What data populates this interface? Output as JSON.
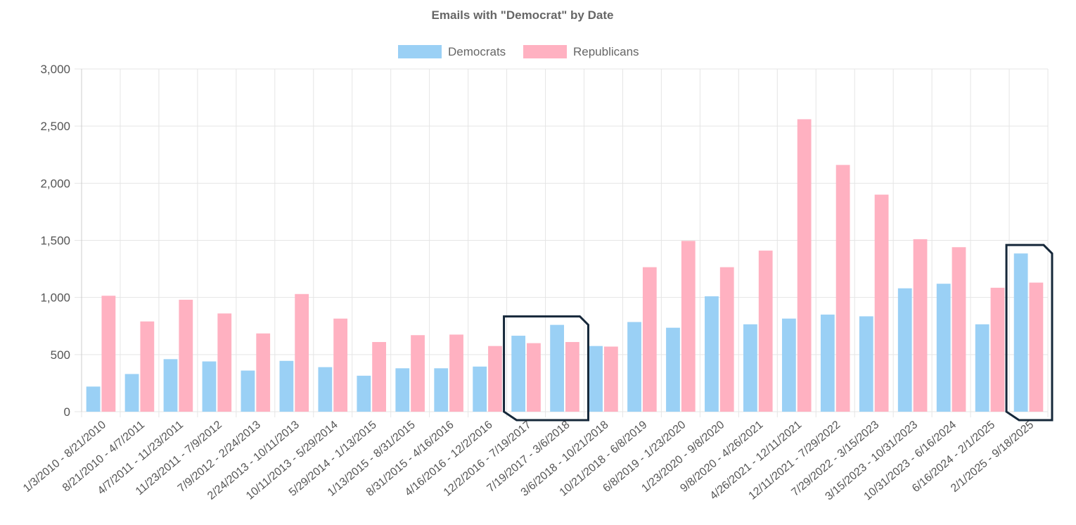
{
  "chart_data": {
    "type": "bar",
    "title": "Emails with \"Democrat\" by Date",
    "legend_position": "top",
    "grid": true,
    "ylim": [
      0,
      3000
    ],
    "yticks": [
      0,
      500,
      1000,
      1500,
      2000,
      2500,
      3000
    ],
    "ytick_labels": [
      "0",
      "500",
      "1,000",
      "1,500",
      "2,000",
      "2,500",
      "3,000"
    ],
    "categories": [
      "1/3/2010 - 8/21/2010",
      "8/21/2010 - 4/7/2011",
      "4/7/2011 - 11/23/2011",
      "11/23/2011 - 7/9/2012",
      "7/9/2012 - 2/24/2013",
      "2/24/2013 - 10/11/2013",
      "10/11/2013 - 5/29/2014",
      "5/29/2014 - 1/13/2015",
      "1/13/2015 - 8/31/2015",
      "8/31/2015 - 4/16/2016",
      "4/16/2016 - 12/2/2016",
      "12/2/2016 - 7/19/2017",
      "7/19/2017 - 3/6/2018",
      "3/6/2018 - 10/21/2018",
      "10/21/2018 - 6/8/2019",
      "6/8/2019 - 1/23/2020",
      "1/23/2020 - 9/8/2020",
      "9/8/2020 - 4/26/2021",
      "4/26/2021 - 12/11/2021",
      "12/11/2021 - 7/29/2022",
      "7/29/2022 - 3/15/2023",
      "3/15/2023 - 10/31/2023",
      "10/31/2023 - 6/16/2024",
      "6/16/2024 - 2/1/2025",
      "2/1/2025 - 9/18/2025"
    ],
    "series": [
      {
        "name": "Democrats",
        "color": "#9ad0f5",
        "values": [
          220,
          330,
          460,
          440,
          360,
          445,
          390,
          315,
          380,
          380,
          395,
          665,
          760,
          575,
          785,
          735,
          1010,
          765,
          815,
          850,
          835,
          1080,
          1120,
          765,
          1385
        ]
      },
      {
        "name": "Republicans",
        "color": "#ffb1c1",
        "values": [
          1015,
          790,
          980,
          860,
          685,
          1030,
          815,
          610,
          670,
          675,
          575,
          600,
          610,
          570,
          1265,
          1495,
          1265,
          1410,
          2560,
          2160,
          1900,
          1510,
          1440,
          1085,
          1130
        ]
      }
    ],
    "annotations": [
      {
        "type": "highlight-box",
        "categories": [
          11,
          12
        ]
      },
      {
        "type": "highlight-box",
        "categories": [
          24
        ]
      }
    ]
  },
  "colors": {
    "highlight_stroke": "#16283a",
    "grid": "#e5e5e5",
    "text": "#666666"
  }
}
